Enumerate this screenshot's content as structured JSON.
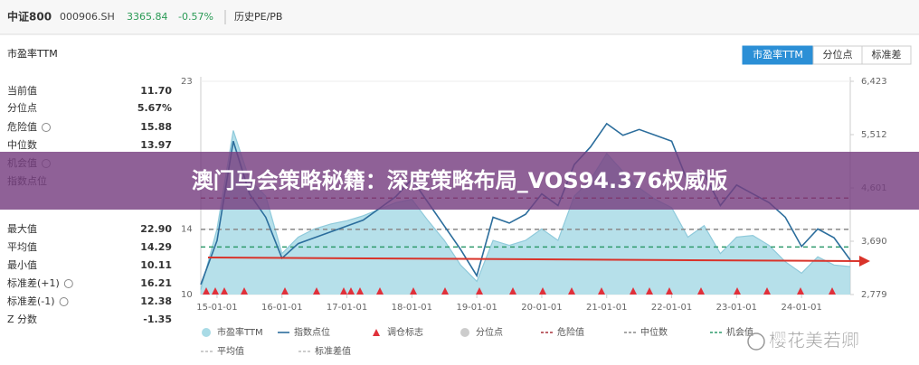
{
  "header": {
    "name": "中证800",
    "code": "000906.SH",
    "price": "3365.84",
    "change": "-0.57%",
    "tab": "历史PE/PB"
  },
  "tabs": [
    "市盈率TTM",
    "分位点",
    "标准差"
  ],
  "stats": [
    {
      "label": "当前值",
      "value": "11.70"
    },
    {
      "label": "分位点",
      "value": "5.67%"
    },
    {
      "label": "危险值",
      "value": "15.88"
    },
    {
      "label": "中位数",
      "value": "13.97"
    },
    {
      "label": "机会值"
    },
    {
      "label": "指数点位"
    },
    {
      "label": "最大值",
      "value": "22.90"
    },
    {
      "label": "平均值",
      "value": "14.29"
    },
    {
      "label": "最小值",
      "value": "10.11"
    },
    {
      "label": "标准差(+1)",
      "value": "16.21"
    },
    {
      "label": "标准差(-1)",
      "value": "12.38"
    },
    {
      "label": "Z 分数",
      "value": "-1.35"
    }
  ],
  "banner": "澳门马会策略秘籍：深度策略布局_VOS94.376权威版",
  "watermark": "樱花美若卿",
  "chart_data": {
    "type": "area",
    "title": "市盈率TTM",
    "categories": [
      null,
      "15-01-01",
      null,
      null,
      null,
      "16-01-01",
      null,
      null,
      null,
      "17-01-01",
      null,
      null,
      null,
      "18-01-01",
      null,
      null,
      null,
      "19-01-01",
      null,
      null,
      null,
      "20-01-01",
      null,
      null,
      null,
      "21-01-01",
      null,
      null,
      null,
      "22-01-01",
      null,
      null,
      null,
      "23-01-01",
      null,
      null,
      null,
      "24-01-01",
      null,
      null,
      null
    ],
    "series": [
      {
        "name": "市盈率TTM",
        "color": "#a9dbe6",
        "values": [
          10.3,
          14,
          20,
          17,
          16,
          12.5,
          13.5,
          14,
          14.3,
          14.5,
          14.8,
          15.2,
          15.6,
          15.8,
          14.5,
          13.3,
          11.8,
          10.8,
          13.3,
          13,
          13.3,
          14,
          13.3,
          16,
          17,
          18.6,
          17.5,
          16.5,
          15.8,
          15.3,
          13.5,
          14.2,
          12.5,
          13.5,
          13.6,
          13,
          12,
          11.3,
          12.3,
          11.8,
          11.7
        ]
      },
      {
        "name": "指数点位",
        "color": "#2b6d9c",
        "axis": "y2",
        "values": [
          2950,
          3700,
          5400,
          4500,
          4100,
          3400,
          3650,
          3750,
          3850,
          3950,
          4050,
          4250,
          4450,
          4750,
          4350,
          3950,
          3550,
          3100,
          4100,
          4000,
          4150,
          4500,
          4300,
          5000,
          5300,
          5700,
          5500,
          5600,
          5500,
          5400,
          4700,
          4850,
          4300,
          4650,
          4500,
          4350,
          4100,
          3600,
          3900,
          3750,
          3370
        ]
      }
    ],
    "reference_lines": [
      {
        "name": "危险值",
        "value": 15.88,
        "color": "#a8323a"
      },
      {
        "name": "中位数",
        "value": 13.97,
        "color": "#888888"
      },
      {
        "name": "机会值",
        "value": 12.9,
        "color": "#2f9a6c"
      }
    ],
    "legend": [
      "市盈率TTM",
      "指数点位",
      "调仓标志",
      "分位点",
      "危险值",
      "中位数",
      "机会值",
      "平均值",
      "标准差值"
    ],
    "ylim": [
      10,
      23
    ],
    "yticks": [
      10,
      14,
      23
    ],
    "y2lim": [
      2779,
      6423
    ],
    "y2ticks": [
      {
        "value": 2779,
        "label": "2,779"
      },
      {
        "value": 3690,
        "label": "3,690"
      },
      {
        "value": 4601,
        "label": "4,601"
      },
      {
        "value": 5512,
        "label": "5,512"
      },
      {
        "value": 6423,
        "label": "6,423"
      }
    ],
    "grid": true
  }
}
